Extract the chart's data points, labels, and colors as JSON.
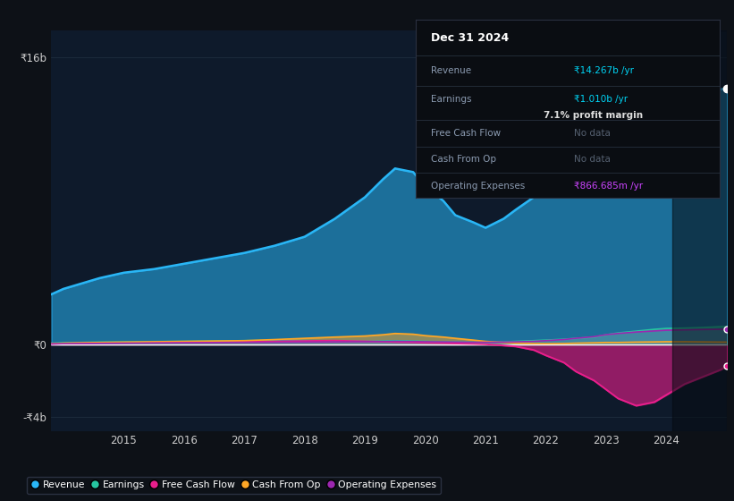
{
  "bg_color": "#0d1117",
  "plot_bg_color": "#0e1a2b",
  "years": [
    2013.8,
    2014.0,
    2014.3,
    2014.6,
    2015.0,
    2015.5,
    2016.0,
    2016.5,
    2017.0,
    2017.5,
    2018.0,
    2018.5,
    2019.0,
    2019.3,
    2019.5,
    2019.8,
    2020.0,
    2020.3,
    2020.5,
    2020.8,
    2021.0,
    2021.3,
    2021.5,
    2021.8,
    2022.0,
    2022.3,
    2022.5,
    2022.8,
    2023.0,
    2023.2,
    2023.5,
    2023.8,
    2024.0,
    2024.3,
    2024.6,
    2024.9,
    2025.0
  ],
  "revenue": [
    2.8,
    3.1,
    3.4,
    3.7,
    4.0,
    4.2,
    4.5,
    4.8,
    5.1,
    5.5,
    6.0,
    7.0,
    8.2,
    9.2,
    9.8,
    9.6,
    8.8,
    8.0,
    7.2,
    6.8,
    6.5,
    7.0,
    7.5,
    8.2,
    9.0,
    9.8,
    10.4,
    10.8,
    11.0,
    10.8,
    10.6,
    11.0,
    11.5,
    12.5,
    13.5,
    14.2,
    14.267
  ],
  "earnings": [
    0.08,
    0.1,
    0.12,
    0.14,
    0.15,
    0.17,
    0.18,
    0.2,
    0.22,
    0.23,
    0.22,
    0.2,
    0.18,
    0.2,
    0.22,
    0.2,
    0.18,
    0.16,
    0.15,
    0.14,
    0.13,
    0.15,
    0.18,
    0.22,
    0.25,
    0.3,
    0.35,
    0.42,
    0.55,
    0.65,
    0.75,
    0.85,
    0.9,
    0.92,
    0.95,
    1.0,
    1.01
  ],
  "free_cash_flow": [
    0.04,
    0.06,
    0.08,
    0.1,
    0.1,
    0.12,
    0.12,
    0.14,
    0.16,
    0.18,
    0.2,
    0.22,
    0.18,
    0.16,
    0.14,
    0.12,
    0.1,
    0.08,
    0.06,
    0.04,
    0.02,
    -0.05,
    -0.1,
    -0.3,
    -0.6,
    -1.0,
    -1.5,
    -2.0,
    -2.5,
    -3.0,
    -3.4,
    -3.2,
    -2.8,
    -2.2,
    -1.8,
    -1.4,
    -1.2
  ],
  "cash_from_op": [
    0.05,
    0.08,
    0.1,
    0.12,
    0.14,
    0.16,
    0.18,
    0.2,
    0.22,
    0.28,
    0.35,
    0.42,
    0.48,
    0.55,
    0.62,
    0.58,
    0.5,
    0.42,
    0.35,
    0.25,
    0.18,
    0.12,
    0.08,
    0.06,
    0.05,
    0.06,
    0.08,
    0.1,
    0.12,
    0.12,
    0.14,
    0.15,
    0.16,
    0.16,
    0.15,
    0.14,
    0.14
  ],
  "op_expenses": [
    0.04,
    0.05,
    0.06,
    0.07,
    0.08,
    0.09,
    0.1,
    0.11,
    0.12,
    0.13,
    0.14,
    0.15,
    0.16,
    0.17,
    0.18,
    0.17,
    0.16,
    0.15,
    0.14,
    0.13,
    0.13,
    0.14,
    0.15,
    0.18,
    0.22,
    0.28,
    0.35,
    0.44,
    0.55,
    0.62,
    0.7,
    0.76,
    0.8,
    0.82,
    0.84,
    0.85,
    0.866
  ],
  "revenue_color": "#29b6f6",
  "earnings_color": "#26c6a0",
  "free_cash_flow_color": "#e91e8c",
  "cash_from_op_color": "#ffa726",
  "op_expenses_color": "#9c27b0",
  "ylim_min": -4.8,
  "ylim_max": 17.5,
  "xticks": [
    2015,
    2016,
    2017,
    2018,
    2019,
    2020,
    2021,
    2022,
    2023,
    2024
  ],
  "ytick_neg4_label": "-₹4b",
  "ytick_0_label": "₹0",
  "ytick_16_label": "₹16b",
  "info_box": {
    "date": "Dec 31 2024",
    "revenue_label": "Revenue",
    "revenue_value": "₹14.267b /yr",
    "earnings_label": "Earnings",
    "earnings_value": "₹1.010b /yr",
    "margin_text": "7.1% profit margin",
    "fcf_label": "Free Cash Flow",
    "fcf_value": "No data",
    "cfo_label": "Cash From Op",
    "cfo_value": "No data",
    "opex_label": "Operating Expenses",
    "opex_value": "₹866.685m /yr"
  },
  "legend_entries": [
    "Revenue",
    "Earnings",
    "Free Cash Flow",
    "Cash From Op",
    "Operating Expenses"
  ],
  "legend_colors": [
    "#29b6f6",
    "#26c6a0",
    "#e91e8c",
    "#ffa726",
    "#9c27b0"
  ],
  "tooltip_start_x": 2024.1
}
